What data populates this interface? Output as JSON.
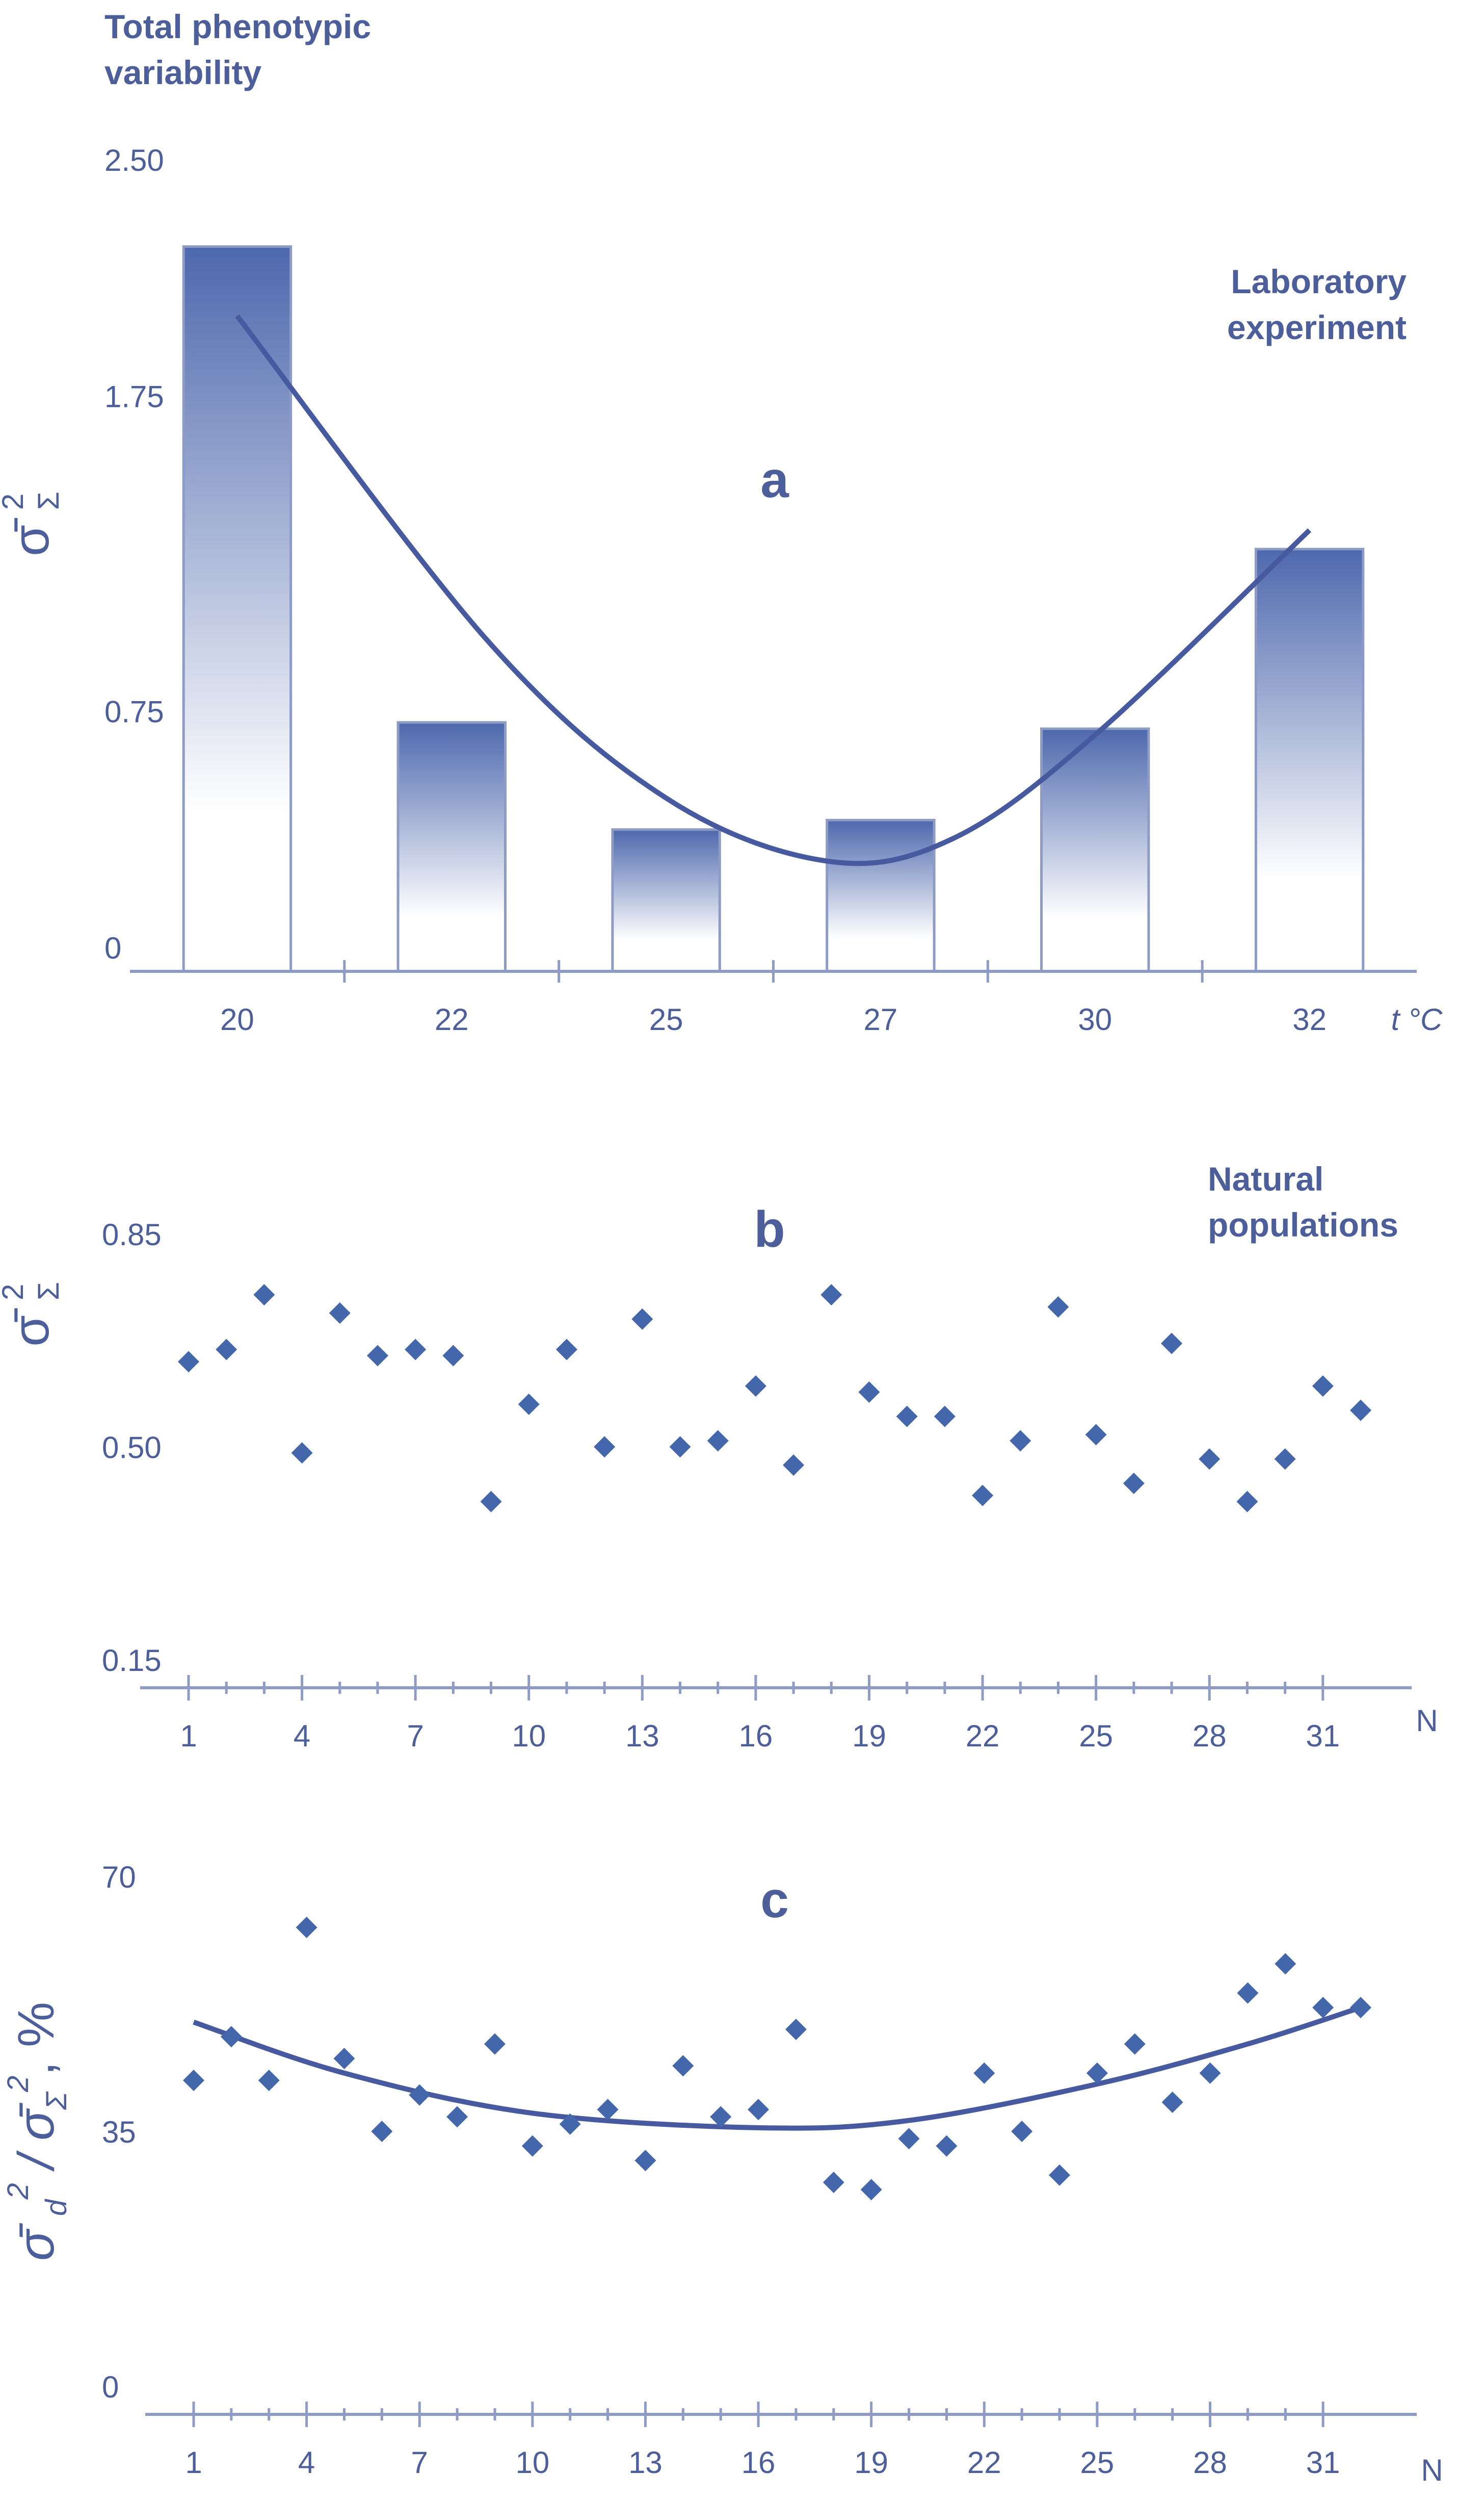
{
  "chart_data": [
    {
      "id": "a",
      "type": "bar",
      "panel_label": "a",
      "title": "Total phenotypic variability",
      "annotation": "Laboratory experiment",
      "ylabel": "σ̄Σ²",
      "xunit": "t °C",
      "categories": [
        "20",
        "22",
        "25",
        "27",
        "30",
        "32"
      ],
      "values": [
        2.3,
        0.79,
        0.45,
        0.48,
        0.77,
        1.34
      ],
      "yticks": [
        "2.50",
        "1.75",
        "0.75",
        "0"
      ],
      "ytick_values": [
        2.5,
        1.75,
        0.75,
        0
      ],
      "ylim": [
        0,
        2.5
      ],
      "trend": {
        "type": "quadratic",
        "points": [
          [
            20,
            2.08
          ],
          [
            22.5,
            1.05
          ],
          [
            25,
            0.55
          ],
          [
            26.5,
            0.35
          ],
          [
            28,
            0.42
          ],
          [
            30,
            0.75
          ],
          [
            32,
            1.4
          ]
        ]
      },
      "bar_color": "#4d68ad"
    },
    {
      "id": "b",
      "type": "scatter",
      "panel_label": "b",
      "annotation": "Natural populations",
      "ylabel": "σ̄Σ²",
      "xlabel": "N",
      "xticks": [
        "1",
        "4",
        "7",
        "10",
        "13",
        "16",
        "19",
        "22",
        "25",
        "28",
        "31"
      ],
      "xtick_values": [
        1,
        4,
        7,
        10,
        13,
        16,
        19,
        22,
        25,
        28,
        31
      ],
      "xlim": [
        1,
        32
      ],
      "yticks": [
        "0.85",
        "0.50",
        "0.15"
      ],
      "ytick_values": [
        0.85,
        0.5,
        0.15
      ],
      "ylim": [
        0.15,
        0.85
      ],
      "x": [
        1,
        2,
        3,
        4,
        5,
        6,
        7,
        8,
        9,
        10,
        11,
        12,
        13,
        14,
        15,
        16,
        17,
        18,
        19,
        20,
        21,
        22,
        23,
        24,
        25,
        26,
        27,
        28,
        29,
        30,
        31,
        32
      ],
      "y": [
        0.64,
        0.66,
        0.75,
        0.49,
        0.72,
        0.65,
        0.66,
        0.65,
        0.41,
        0.57,
        0.66,
        0.5,
        0.71,
        0.5,
        0.51,
        0.6,
        0.47,
        0.75,
        0.59,
        0.55,
        0.55,
        0.42,
        0.51,
        0.73,
        0.52,
        0.44,
        0.67,
        0.48,
        0.41,
        0.48,
        0.6,
        0.56
      ],
      "marker_color": "#4466aa"
    },
    {
      "id": "c",
      "type": "scatter",
      "panel_label": "c",
      "ylabel": "σ̄d² / σ̄Σ², %",
      "xlabel": "N",
      "xticks": [
        "1",
        "4",
        "7",
        "10",
        "13",
        "16",
        "19",
        "22",
        "25",
        "28",
        "31"
      ],
      "xtick_values": [
        1,
        4,
        7,
        10,
        13,
        16,
        19,
        22,
        25,
        28,
        31
      ],
      "xlim": [
        1,
        32
      ],
      "yticks": [
        "70",
        "35",
        "0"
      ],
      "ytick_values": [
        70,
        35,
        0
      ],
      "ylim": [
        0,
        70
      ],
      "x": [
        1,
        2,
        3,
        4,
        5,
        6,
        7,
        8,
        9,
        10,
        11,
        12,
        13,
        14,
        15,
        16,
        17,
        18,
        19,
        20,
        21,
        22,
        23,
        24,
        25,
        26,
        27,
        28,
        29,
        30,
        31,
        32
      ],
      "y": [
        42,
        48,
        42,
        63,
        45,
        35,
        40,
        37,
        47,
        33,
        36,
        38,
        31,
        44,
        37,
        38,
        49,
        28,
        27,
        34,
        33,
        43,
        35,
        29,
        43,
        47,
        39,
        43,
        54,
        58,
        52,
        52
      ],
      "trend": {
        "type": "quadratic",
        "points": [
          [
            1,
            50
          ],
          [
            5,
            43
          ],
          [
            10,
            37.5
          ],
          [
            16,
            35.5
          ],
          [
            20,
            36.5
          ],
          [
            25,
            41.5
          ],
          [
            29,
            47
          ],
          [
            32,
            52
          ]
        ]
      },
      "marker_color": "#4466aa"
    }
  ]
}
